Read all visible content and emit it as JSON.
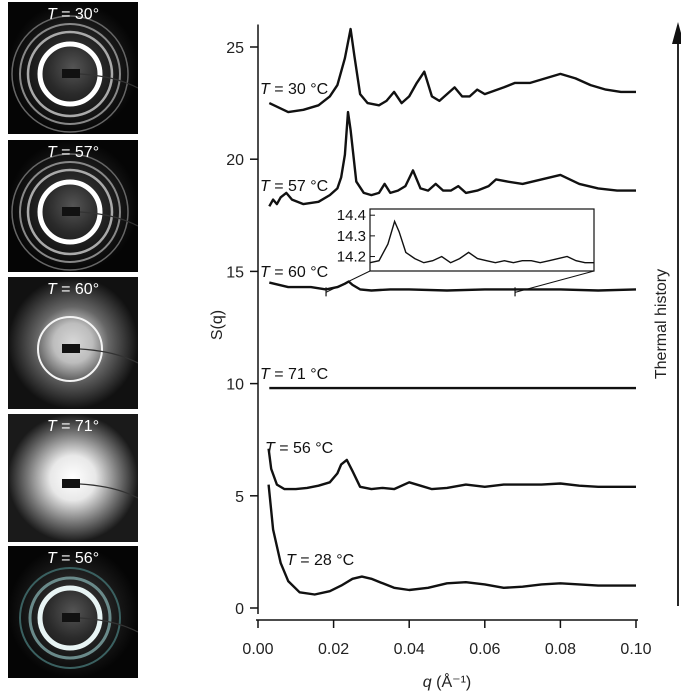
{
  "diffraction_panels": [
    {
      "label_var": "T",
      "label_rest": " = 30°",
      "pattern": "rings"
    },
    {
      "label_var": "T",
      "label_rest": " = 57°",
      "pattern": "rings"
    },
    {
      "label_var": "T",
      "label_rest": " = 60°",
      "pattern": "diffuse-ring"
    },
    {
      "label_var": "T",
      "label_rest": " = 71°",
      "pattern": "diffuse"
    },
    {
      "label_var": "T",
      "label_rest": " = 56°",
      "pattern": "ring"
    }
  ],
  "chart_data": {
    "type": "line",
    "xlabel_var": "q",
    "xlabel_unit": " (Å⁻¹)",
    "ylabel": "S(q)",
    "xlim": [
      0.0,
      0.1
    ],
    "ylim": [
      0,
      26
    ],
    "xticks": [
      "0.00",
      "0.02",
      "0.04",
      "0.06",
      "0.08",
      "0.10"
    ],
    "yticks": [
      "0",
      "5",
      "10",
      "15",
      "20",
      "25"
    ],
    "arrow_label": "Thermal history",
    "series": [
      {
        "label_var": "T",
        "label_rest": " = 30 °C",
        "x": [
          0.003,
          0.008,
          0.012,
          0.016,
          0.019,
          0.021,
          0.023,
          0.0245,
          0.0255,
          0.027,
          0.029,
          0.032,
          0.034,
          0.036,
          0.038,
          0.04,
          0.042,
          0.044,
          0.046,
          0.048,
          0.05,
          0.052,
          0.054,
          0.056,
          0.058,
          0.06,
          0.065,
          0.068,
          0.072,
          0.076,
          0.08,
          0.084,
          0.088,
          0.092,
          0.096,
          0.1
        ],
        "y": [
          22.5,
          22.1,
          22.2,
          22.4,
          22.8,
          23.3,
          24.5,
          25.8,
          24.6,
          22.9,
          22.5,
          22.4,
          22.6,
          23.0,
          22.5,
          22.8,
          23.4,
          23.9,
          22.8,
          22.6,
          22.9,
          23.2,
          22.8,
          22.8,
          23.1,
          22.9,
          23.2,
          23.4,
          23.4,
          23.6,
          23.8,
          23.6,
          23.3,
          23.1,
          23.0,
          23.0
        ]
      },
      {
        "label_var": "T",
        "label_rest": " = 57 °C",
        "x": [
          0.003,
          0.004,
          0.005,
          0.006,
          0.0075,
          0.009,
          0.012,
          0.016,
          0.019,
          0.021,
          0.022,
          0.023,
          0.0238,
          0.0245,
          0.026,
          0.028,
          0.03,
          0.032,
          0.0335,
          0.035,
          0.037,
          0.039,
          0.041,
          0.043,
          0.045,
          0.047,
          0.049,
          0.051,
          0.053,
          0.055,
          0.058,
          0.061,
          0.063,
          0.066,
          0.07,
          0.075,
          0.08,
          0.085,
          0.09,
          0.095,
          0.1
        ],
        "y": [
          17.9,
          18.2,
          18.0,
          18.3,
          18.5,
          18.2,
          18.0,
          18.1,
          18.4,
          18.7,
          19.2,
          20.2,
          22.1,
          21.3,
          19.0,
          18.5,
          18.4,
          18.5,
          18.9,
          18.5,
          18.6,
          18.8,
          19.5,
          18.7,
          18.6,
          18.9,
          18.6,
          18.6,
          18.8,
          18.5,
          18.6,
          18.8,
          19.1,
          19.0,
          18.9,
          19.1,
          19.3,
          18.9,
          18.7,
          18.6,
          18.6
        ]
      },
      {
        "label_var": "T",
        "label_rest": " = 60 °C",
        "x": [
          0.003,
          0.008,
          0.014,
          0.018,
          0.021,
          0.023,
          0.024,
          0.025,
          0.027,
          0.03,
          0.035,
          0.04,
          0.05,
          0.06,
          0.07,
          0.08,
          0.09,
          0.1
        ],
        "y": [
          14.5,
          14.3,
          14.3,
          14.2,
          14.3,
          14.45,
          14.55,
          14.4,
          14.2,
          14.15,
          14.2,
          14.2,
          14.15,
          14.2,
          14.2,
          14.2,
          14.15,
          14.2
        ]
      },
      {
        "label_var": "T",
        "label_rest": " = 71 °C",
        "x": [
          0.003,
          0.1
        ],
        "y": [
          9.8,
          9.8
        ]
      },
      {
        "label_var": "T",
        "label_rest": " = 56 °C",
        "x": [
          0.0028,
          0.0035,
          0.005,
          0.007,
          0.01,
          0.013,
          0.016,
          0.019,
          0.021,
          0.022,
          0.0235,
          0.025,
          0.027,
          0.03,
          0.033,
          0.036,
          0.04,
          0.043,
          0.046,
          0.05,
          0.055,
          0.06,
          0.065,
          0.07,
          0.075,
          0.08,
          0.085,
          0.09,
          0.095,
          0.1
        ],
        "y": [
          7.1,
          6.2,
          5.5,
          5.3,
          5.3,
          5.35,
          5.45,
          5.6,
          6.0,
          6.4,
          6.6,
          6.1,
          5.4,
          5.3,
          5.35,
          5.3,
          5.6,
          5.45,
          5.3,
          5.35,
          5.5,
          5.4,
          5.5,
          5.5,
          5.5,
          5.55,
          5.45,
          5.4,
          5.4,
          5.4
        ]
      },
      {
        "label_var": "T",
        "label_rest": " = 28 °C",
        "x": [
          0.0028,
          0.004,
          0.006,
          0.008,
          0.011,
          0.015,
          0.019,
          0.022,
          0.025,
          0.0275,
          0.03,
          0.033,
          0.036,
          0.04,
          0.045,
          0.05,
          0.055,
          0.06,
          0.065,
          0.07,
          0.075,
          0.08,
          0.085,
          0.09,
          0.095,
          0.1
        ],
        "y": [
          5.5,
          3.5,
          2.0,
          1.2,
          0.7,
          0.6,
          0.75,
          1.0,
          1.3,
          1.4,
          1.3,
          1.1,
          0.9,
          0.8,
          0.9,
          1.1,
          1.15,
          1.05,
          0.9,
          0.95,
          1.05,
          1.1,
          1.05,
          1.0,
          1.0,
          1.0
        ]
      }
    ],
    "inset": {
      "yticks": [
        "14.4",
        "14.3",
        "14.2"
      ],
      "ylim": [
        14.13,
        14.43
      ],
      "xlim": [
        0.018,
        0.068
      ],
      "x": [
        0.018,
        0.02,
        0.022,
        0.0235,
        0.0245,
        0.026,
        0.028,
        0.03,
        0.032,
        0.034,
        0.036,
        0.038,
        0.04,
        0.042,
        0.044,
        0.046,
        0.048,
        0.05,
        0.052,
        0.054,
        0.056,
        0.058,
        0.06,
        0.062,
        0.064,
        0.066,
        0.068
      ],
      "y": [
        14.17,
        14.18,
        14.26,
        14.37,
        14.32,
        14.22,
        14.19,
        14.17,
        14.18,
        14.2,
        14.17,
        14.19,
        14.22,
        14.19,
        14.18,
        14.17,
        14.18,
        14.17,
        14.18,
        14.18,
        14.17,
        14.18,
        14.19,
        14.2,
        14.18,
        14.17,
        14.17
      ]
    }
  }
}
